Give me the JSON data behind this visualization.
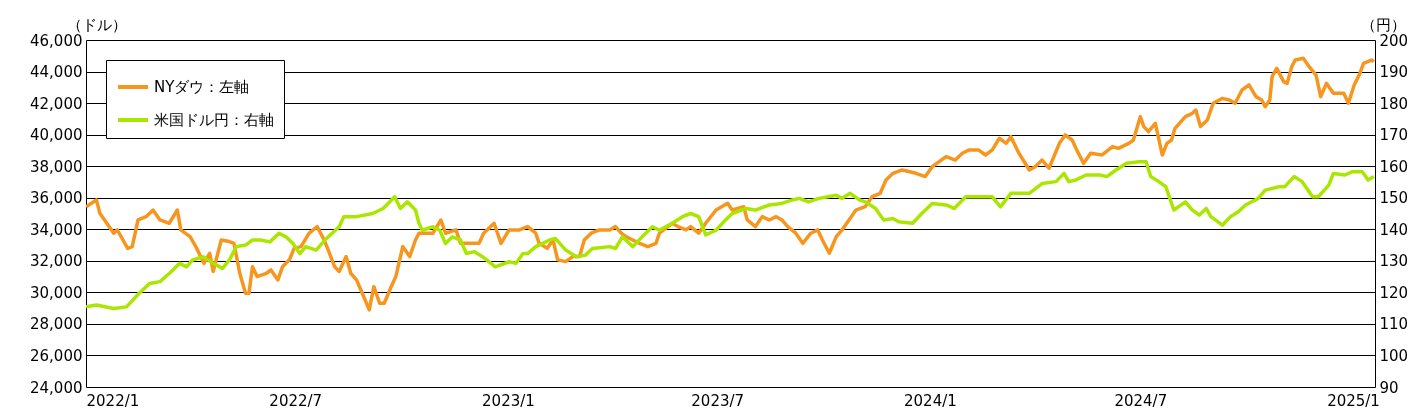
{
  "chart_data": {
    "type": "line",
    "ylabel": "（ドル）",
    "y2label": "（円）",
    "xlim": [
      "2022-01-01",
      "2025-01-20"
    ],
    "xticks": [
      {
        "value": "2022-01-01",
        "label": "2022/1"
      },
      {
        "value": "2022-07-01",
        "label": "2022/7"
      },
      {
        "value": "2023-01-01",
        "label": "2023/1"
      },
      {
        "value": "2023-07-01",
        "label": "2023/7"
      },
      {
        "value": "2024-01-01",
        "label": "2024/1"
      },
      {
        "value": "2024-07-01",
        "label": "2024/7"
      },
      {
        "value": "2025-01-01",
        "label": "2025/1"
      }
    ],
    "ylim": [
      24000,
      46000
    ],
    "yticks": [
      {
        "value": 24000,
        "label": "24,000"
      },
      {
        "value": 26000,
        "label": "26,000"
      },
      {
        "value": 28000,
        "label": "28,000"
      },
      {
        "value": 30000,
        "label": "30,000"
      },
      {
        "value": 32000,
        "label": "32,000"
      },
      {
        "value": 34000,
        "label": "34,000"
      },
      {
        "value": 36000,
        "label": "36,000"
      },
      {
        "value": 38000,
        "label": "38,000"
      },
      {
        "value": 40000,
        "label": "40,000"
      },
      {
        "value": 42000,
        "label": "42,000"
      },
      {
        "value": 44000,
        "label": "44,000"
      },
      {
        "value": 46000,
        "label": "46,000"
      }
    ],
    "y2lim": [
      90,
      200
    ],
    "y2ticks": [
      90,
      100,
      110,
      120,
      130,
      140,
      150,
      160,
      170,
      180,
      190,
      200
    ],
    "grid": "y",
    "legend": "top left",
    "line_style": "solid",
    "marker": "none",
    "series": [
      {
        "name": "NYダウ：左軸",
        "color": "#f7961e",
        "x": [
          "2022-01-01",
          "2022-01-10",
          "2022-01-13",
          "2022-01-19",
          "2022-01-25",
          "2022-01-28",
          "2022-02-02",
          "2022-02-06",
          "2022-02-10",
          "2022-02-15",
          "2022-02-22",
          "2022-02-28",
          "2022-03-06",
          "2022-03-14",
          "2022-03-21",
          "2022-03-24",
          "2022-04-01",
          "2022-04-06",
          "2022-04-13",
          "2022-04-18",
          "2022-04-21",
          "2022-04-28",
          "2022-05-05",
          "2022-05-09",
          "2022-05-14",
          "2022-05-19",
          "2022-05-22",
          "2022-05-25",
          "2022-05-29",
          "2022-06-06",
          "2022-06-10",
          "2022-06-16",
          "2022-06-20",
          "2022-06-26",
          "2022-06-30",
          "2022-07-06",
          "2022-07-13",
          "2022-07-20",
          "2022-07-26",
          "2022-07-29",
          "2022-08-04",
          "2022-08-08",
          "2022-08-14",
          "2022-08-18",
          "2022-08-23",
          "2022-08-28",
          "2022-09-03",
          "2022-09-07",
          "2022-09-12",
          "2022-09-16",
          "2022-09-22",
          "2022-09-26",
          "2022-10-02",
          "2022-10-08",
          "2022-10-13",
          "2022-10-16",
          "2022-10-28",
          "2022-11-04",
          "2022-11-08",
          "2022-11-17",
          "2022-11-21",
          "2022-11-30",
          "2022-12-07",
          "2022-12-11",
          "2022-12-20",
          "2022-12-26",
          "2023-01-02",
          "2023-01-11",
          "2023-01-18",
          "2023-01-25",
          "2023-01-28",
          "2023-02-04",
          "2023-02-09",
          "2023-02-13",
          "2023-02-20",
          "2023-02-26",
          "2023-03-04",
          "2023-03-08",
          "2023-03-14",
          "2023-03-21",
          "2023-03-30",
          "2023-04-04",
          "2023-04-09",
          "2023-04-13",
          "2023-04-19",
          "2023-04-25",
          "2023-05-02",
          "2023-05-09",
          "2023-05-12",
          "2023-05-23",
          "2023-05-28",
          "2023-06-04",
          "2023-06-08",
          "2023-06-15",
          "2023-06-21",
          "2023-06-30",
          "2023-07-10",
          "2023-07-14",
          "2023-07-24",
          "2023-07-27",
          "2023-08-03",
          "2023-08-09",
          "2023-08-15",
          "2023-08-21",
          "2023-08-26",
          "2023-08-31",
          "2023-09-07",
          "2023-09-13",
          "2023-09-20",
          "2023-09-26",
          "2023-09-30",
          "2023-10-06",
          "2023-10-12",
          "2023-10-17",
          "2023-10-23",
          "2023-10-29",
          "2023-11-06",
          "2023-11-12",
          "2023-11-19",
          "2023-11-24",
          "2023-11-30",
          "2023-12-08",
          "2023-12-20",
          "2023-12-28",
          "2024-01-03",
          "2024-01-15",
          "2024-01-23",
          "2024-01-29",
          "2024-02-04",
          "2024-02-12",
          "2024-02-18",
          "2024-02-24",
          "2024-03-01",
          "2024-03-07",
          "2024-03-11",
          "2024-03-18",
          "2024-03-27",
          "2024-04-01",
          "2024-04-07",
          "2024-04-13",
          "2024-04-22",
          "2024-04-27",
          "2024-05-03",
          "2024-05-07",
          "2024-05-13",
          "2024-05-19",
          "2024-05-29",
          "2024-06-07",
          "2024-06-12",
          "2024-06-21",
          "2024-06-25",
          "2024-07-01",
          "2024-07-04",
          "2024-07-08",
          "2024-07-14",
          "2024-07-20",
          "2024-07-24",
          "2024-07-28",
          "2024-07-31",
          "2024-08-09",
          "2024-08-15",
          "2024-08-18",
          "2024-08-22",
          "2024-08-28",
          "2024-09-02",
          "2024-09-10",
          "2024-09-16",
          "2024-09-21",
          "2024-09-27",
          "2024-10-03",
          "2024-10-09",
          "2024-10-14",
          "2024-10-17",
          "2024-10-21",
          "2024-10-23",
          "2024-10-27",
          "2024-11-02",
          "2024-11-05",
          "2024-11-09",
          "2024-11-12",
          "2024-11-19",
          "2024-11-24",
          "2024-11-30",
          "2024-12-04",
          "2024-12-09",
          "2024-12-15",
          "2024-12-24",
          "2024-12-28",
          "2025-01-02",
          "2025-01-07",
          "2025-01-10",
          "2025-01-17",
          "2025-01-19"
        ],
        "values": [
          35430,
          35860,
          35010,
          34380,
          33750,
          33960,
          33320,
          32790,
          32900,
          34590,
          34800,
          35220,
          34590,
          34380,
          35220,
          33960,
          33530,
          32900,
          31840,
          32480,
          31320,
          33320,
          33220,
          33110,
          31210,
          29940,
          29940,
          31630,
          31000,
          31210,
          31420,
          30790,
          31630,
          32060,
          32790,
          32900,
          33750,
          34170,
          33320,
          32790,
          31630,
          31320,
          32270,
          31210,
          30790,
          29940,
          28890,
          30360,
          29310,
          29310,
          30360,
          31000,
          32900,
          32270,
          33320,
          33750,
          33750,
          34590,
          33750,
          33960,
          33110,
          33110,
          33110,
          33750,
          34380,
          33110,
          33960,
          33960,
          34170,
          33750,
          33110,
          32790,
          33320,
          32060,
          31950,
          32270,
          32270,
          33320,
          33750,
          33960,
          33960,
          34170,
          33750,
          33530,
          33320,
          33110,
          32900,
          33110,
          33750,
          34380,
          34170,
          33960,
          34170,
          33750,
          34380,
          35220,
          35650,
          35220,
          35430,
          34590,
          34170,
          34800,
          34590,
          34800,
          34590,
          34170,
          33750,
          33110,
          33750,
          33960,
          33320,
          32480,
          33530,
          33960,
          34590,
          35220,
          35430,
          36070,
          36280,
          37130,
          37550,
          37760,
          37550,
          37340,
          37970,
          38610,
          38390,
          38820,
          39030,
          39030,
          38710,
          39030,
          39770,
          39450,
          39870,
          38820,
          37760,
          37970,
          38390,
          37870,
          39450,
          39980,
          39660,
          39030,
          38180,
          38820,
          38710,
          39240,
          39130,
          39450,
          39660,
          41140,
          40510,
          40190,
          40720,
          38710,
          39450,
          39660,
          40400,
          41140,
          41350,
          41560,
          40510,
          40930,
          41990,
          42300,
          42200,
          41990,
          42830,
          43150,
          42410,
          42200,
          41770,
          42200,
          43680,
          44200,
          43360,
          43250,
          44310,
          44730,
          44840,
          44310,
          43780,
          42410,
          43250,
          42620,
          42620,
          41990,
          43150,
          43890,
          44520,
          44730,
          44630
        ]
      },
      {
        "name": "米国ドル円：右軸",
        "color": "#aae600",
        "axis": "y2",
        "x": [
          "2022-01-01",
          "2022-01-10",
          "2022-01-25",
          "2022-02-05",
          "2022-02-16",
          "2022-02-25",
          "2022-03-06",
          "2022-03-14",
          "2022-03-23",
          "2022-03-29",
          "2022-04-03",
          "2022-04-12",
          "2022-04-19",
          "2022-04-29",
          "2022-05-05",
          "2022-05-11",
          "2022-05-19",
          "2022-05-25",
          "2022-06-01",
          "2022-06-09",
          "2022-06-17",
          "2022-06-23",
          "2022-06-29",
          "2022-07-05",
          "2022-07-10",
          "2022-07-19",
          "2022-07-28",
          "2022-08-08",
          "2022-08-12",
          "2022-08-23",
          "2022-09-06",
          "2022-09-15",
          "2022-09-25",
          "2022-09-30",
          "2022-10-06",
          "2022-10-13",
          "2022-10-16",
          "2022-10-19",
          "2022-10-28",
          "2022-11-03",
          "2022-11-08",
          "2022-11-14",
          "2022-11-21",
          "2022-11-26",
          "2022-12-03",
          "2022-12-10",
          "2022-12-21",
          "2023-01-02",
          "2023-01-08",
          "2023-01-14",
          "2023-01-18",
          "2023-01-25",
          "2023-02-06",
          "2023-02-11",
          "2023-02-20",
          "2023-03-01",
          "2023-03-09",
          "2023-03-15",
          "2023-03-30",
          "2023-04-04",
          "2023-04-10",
          "2023-04-19",
          "2023-04-27",
          "2023-05-06",
          "2023-05-12",
          "2023-05-23",
          "2023-06-01",
          "2023-06-08",
          "2023-06-15",
          "2023-06-21",
          "2023-06-30",
          "2023-07-08",
          "2023-07-14",
          "2023-07-26",
          "2023-08-03",
          "2023-08-15",
          "2023-08-26",
          "2023-09-04",
          "2023-09-10",
          "2023-09-18",
          "2023-09-27",
          "2023-10-12",
          "2023-10-17",
          "2023-10-24",
          "2023-11-01",
          "2023-11-06",
          "2023-11-15",
          "2023-11-22",
          "2023-11-30",
          "2023-12-05",
          "2023-12-17",
          "2023-12-25",
          "2024-01-03",
          "2024-01-15",
          "2024-01-22",
          "2024-02-01",
          "2024-02-12",
          "2024-02-24",
          "2024-03-02",
          "2024-03-11",
          "2024-03-27",
          "2024-04-07",
          "2024-04-19",
          "2024-04-26",
          "2024-04-30",
          "2024-05-06",
          "2024-05-15",
          "2024-05-27",
          "2024-06-02",
          "2024-06-10",
          "2024-06-19",
          "2024-06-30",
          "2024-07-06",
          "2024-07-10",
          "2024-07-17",
          "2024-07-23",
          "2024-07-30",
          "2024-08-09",
          "2024-08-15",
          "2024-08-21",
          "2024-08-27",
          "2024-08-31",
          "2024-09-10",
          "2024-09-17",
          "2024-09-24",
          "2024-09-30",
          "2024-10-11",
          "2024-10-17",
          "2024-10-29",
          "2024-11-03",
          "2024-11-11",
          "2024-11-18",
          "2024-11-27",
          "2024-12-02",
          "2024-12-11",
          "2024-12-15",
          "2024-12-25",
          "2024-12-31",
          "2025-01-09",
          "2025-01-14",
          "2025-01-19"
        ],
        "values": [
          115.4,
          116.0,
          114.9,
          115.4,
          119.7,
          122.8,
          123.4,
          126.0,
          129.2,
          128.1,
          130.2,
          131.3,
          129.7,
          127.6,
          130.2,
          134.5,
          135.0,
          136.6,
          136.6,
          136.0,
          138.7,
          137.6,
          135.5,
          132.3,
          134.5,
          133.4,
          137.1,
          140.8,
          144.0,
          144.0,
          145.0,
          146.6,
          150.3,
          146.6,
          148.7,
          146.1,
          141.9,
          139.7,
          140.8,
          139.7,
          135.5,
          137.6,
          136.6,
          132.3,
          132.9,
          131.3,
          128.1,
          129.7,
          129.2,
          132.3,
          132.3,
          134.5,
          136.6,
          137.1,
          133.4,
          131.3,
          131.8,
          133.9,
          134.5,
          133.9,
          137.6,
          134.5,
          137.6,
          140.8,
          139.7,
          141.9,
          144.0,
          145.0,
          144.0,
          138.2,
          139.7,
          142.9,
          145.0,
          146.6,
          146.1,
          147.7,
          148.2,
          149.3,
          149.8,
          148.7,
          149.8,
          150.8,
          149.8,
          151.4,
          149.3,
          148.7,
          146.6,
          142.9,
          143.4,
          142.4,
          141.9,
          145.0,
          148.2,
          147.7,
          146.6,
          150.3,
          150.3,
          150.3,
          147.1,
          151.4,
          151.4,
          154.5,
          155.1,
          157.7,
          155.1,
          155.6,
          157.2,
          157.2,
          156.7,
          158.8,
          160.9,
          161.4,
          161.4,
          156.7,
          155.1,
          153.5,
          146.1,
          148.7,
          146.1,
          144.5,
          146.6,
          144.0,
          141.3,
          144.0,
          145.6,
          147.7,
          149.8,
          152.4,
          153.5,
          153.5,
          156.7,
          155.1,
          150.3,
          150.3,
          154.0,
          157.7,
          157.2,
          158.2,
          158.2,
          155.6,
          156.7
        ]
      }
    ]
  }
}
